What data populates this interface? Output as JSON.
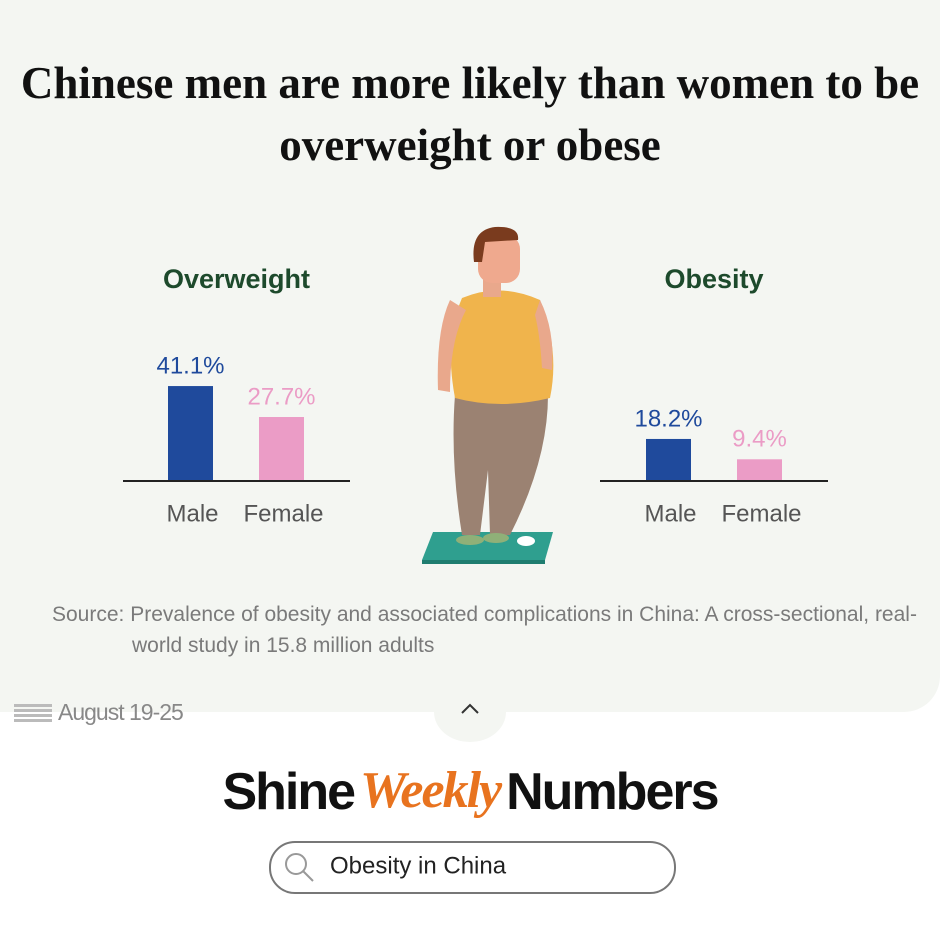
{
  "title": "Chinese men are more likely than women to be overweight or obese",
  "chart_data": [
    {
      "type": "bar",
      "title": "Overweight",
      "categories": [
        "Male",
        "Female"
      ],
      "values": [
        41.1,
        27.7
      ],
      "value_labels": [
        "41.1%",
        "27.7%"
      ],
      "colors": [
        "#1f4a9c",
        "#eb9cc6"
      ]
    },
    {
      "type": "bar",
      "title": "Obesity",
      "categories": [
        "Male",
        "Female"
      ],
      "values": [
        18.2,
        9.4
      ],
      "value_labels": [
        "18.2%",
        "9.4%"
      ],
      "colors": [
        "#1f4a9c",
        "#eb9cc6"
      ]
    }
  ],
  "source": "Source: Prevalence of obesity and associated complications in China: A cross-sectional, real-world study in 15.8 million adults",
  "date": "August 19-25",
  "brand": [
    "Shine",
    "Weekly",
    "Numbers"
  ],
  "search": "Obesity in China"
}
